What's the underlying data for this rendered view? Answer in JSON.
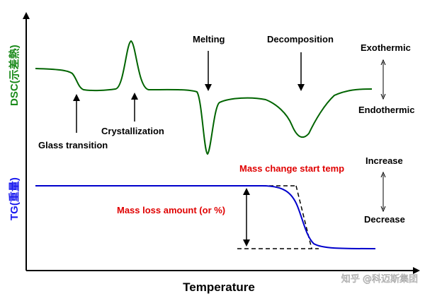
{
  "axes": {
    "y_upper_label": "DSC(示差熱)",
    "y_lower_label": "TG(重量)",
    "x_label": "Temperature"
  },
  "dsc_annotations": {
    "glass_transition": "Glass transition",
    "crystallization": "Crystallization",
    "melting": "Melting",
    "decomposition": "Decomposition"
  },
  "dsc_direction": {
    "top": "Exothermic",
    "bottom": "Endothermic"
  },
  "tg_annotations": {
    "mass_change_start": "Mass change start temp",
    "mass_loss_amount": "Mass loss amount (or %)"
  },
  "tg_direction": {
    "top": "Increase",
    "bottom": "Decrease"
  },
  "watermark": "知乎 @科迈斯集团",
  "colors": {
    "dsc_curve": "#006400",
    "tg_curve": "#0000cc",
    "annotation_red": "#e00000",
    "axis": "#000000",
    "y_upper_label": "#1a8a1a",
    "y_lower_label": "#1a1aee"
  }
}
